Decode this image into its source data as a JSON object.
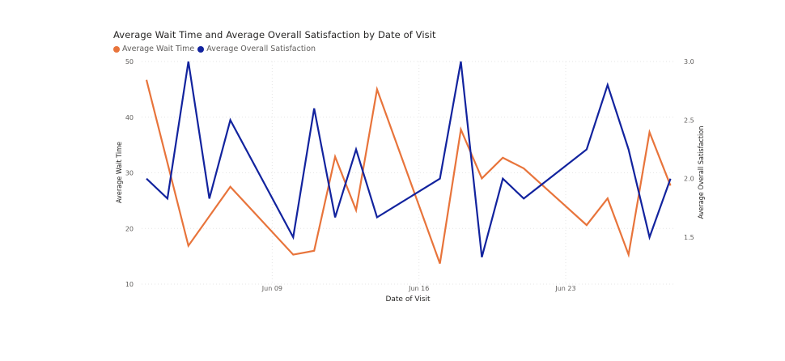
{
  "chart_data": {
    "type": "line",
    "title": "Average Wait Time and Average Overall Satisfaction by Date of Visit",
    "xlabel": "Date of Visit",
    "ylabel_left": "Average Wait Time",
    "ylabel_right": "Average Overall Satisfaction",
    "x_ticks": [
      "Jun 09",
      "Jun 16",
      "Jun 23"
    ],
    "y_left_ticks": [
      "10",
      "20",
      "30",
      "40",
      "50"
    ],
    "y_right_ticks": [
      "1.5",
      "2.0",
      "2.5",
      "3.0"
    ],
    "y_left_lim": [
      10,
      50
    ],
    "y_right_lim": [
      1.1,
      3.0
    ],
    "legend_position": "top-left",
    "grid": true,
    "x": [
      "Jun 03",
      "Jun 04",
      "Jun 05",
      "Jun 06",
      "Jun 07",
      "Jun 08",
      "Jun 09",
      "Jun 10",
      "Jun 11",
      "Jun 12",
      "Jun 13",
      "Jun 14",
      "Jun 15",
      "Jun 16",
      "Jun 17",
      "Jun 18",
      "Jun 19",
      "Jun 20",
      "Jun 21",
      "Jun 22",
      "Jun 23",
      "Jun 24",
      "Jun 25",
      "Jun 26",
      "Jun 27",
      "Jun 28",
      "Jun 29"
    ],
    "series": [
      {
        "name": "Average Wait Time",
        "axis": "left",
        "color": "#E8743B",
        "values": [
          46.7,
          null,
          16.9,
          null,
          27.5,
          null,
          null,
          15.3,
          16.0,
          32.9,
          23.3,
          45.0,
          null,
          null,
          13.7,
          37.8,
          29.0,
          32.7,
          30.8,
          null,
          null,
          20.6,
          25.4,
          15.3,
          37.3,
          27.7,
          null
        ]
      },
      {
        "name": "Average Overall Satisfaction",
        "axis": "right",
        "color": "#12239E",
        "values": [
          2.0,
          1.83,
          3.0,
          1.83,
          2.5,
          null,
          null,
          1.5,
          2.6,
          1.67,
          2.25,
          1.67,
          null,
          null,
          2.0,
          3.0,
          1.33,
          2.0,
          1.83,
          null,
          null,
          2.25,
          2.8,
          2.25,
          1.5,
          2.0,
          null
        ]
      }
    ],
    "x_positions_note": "x values are visit dates; nulls mark dates with no point drawn"
  }
}
